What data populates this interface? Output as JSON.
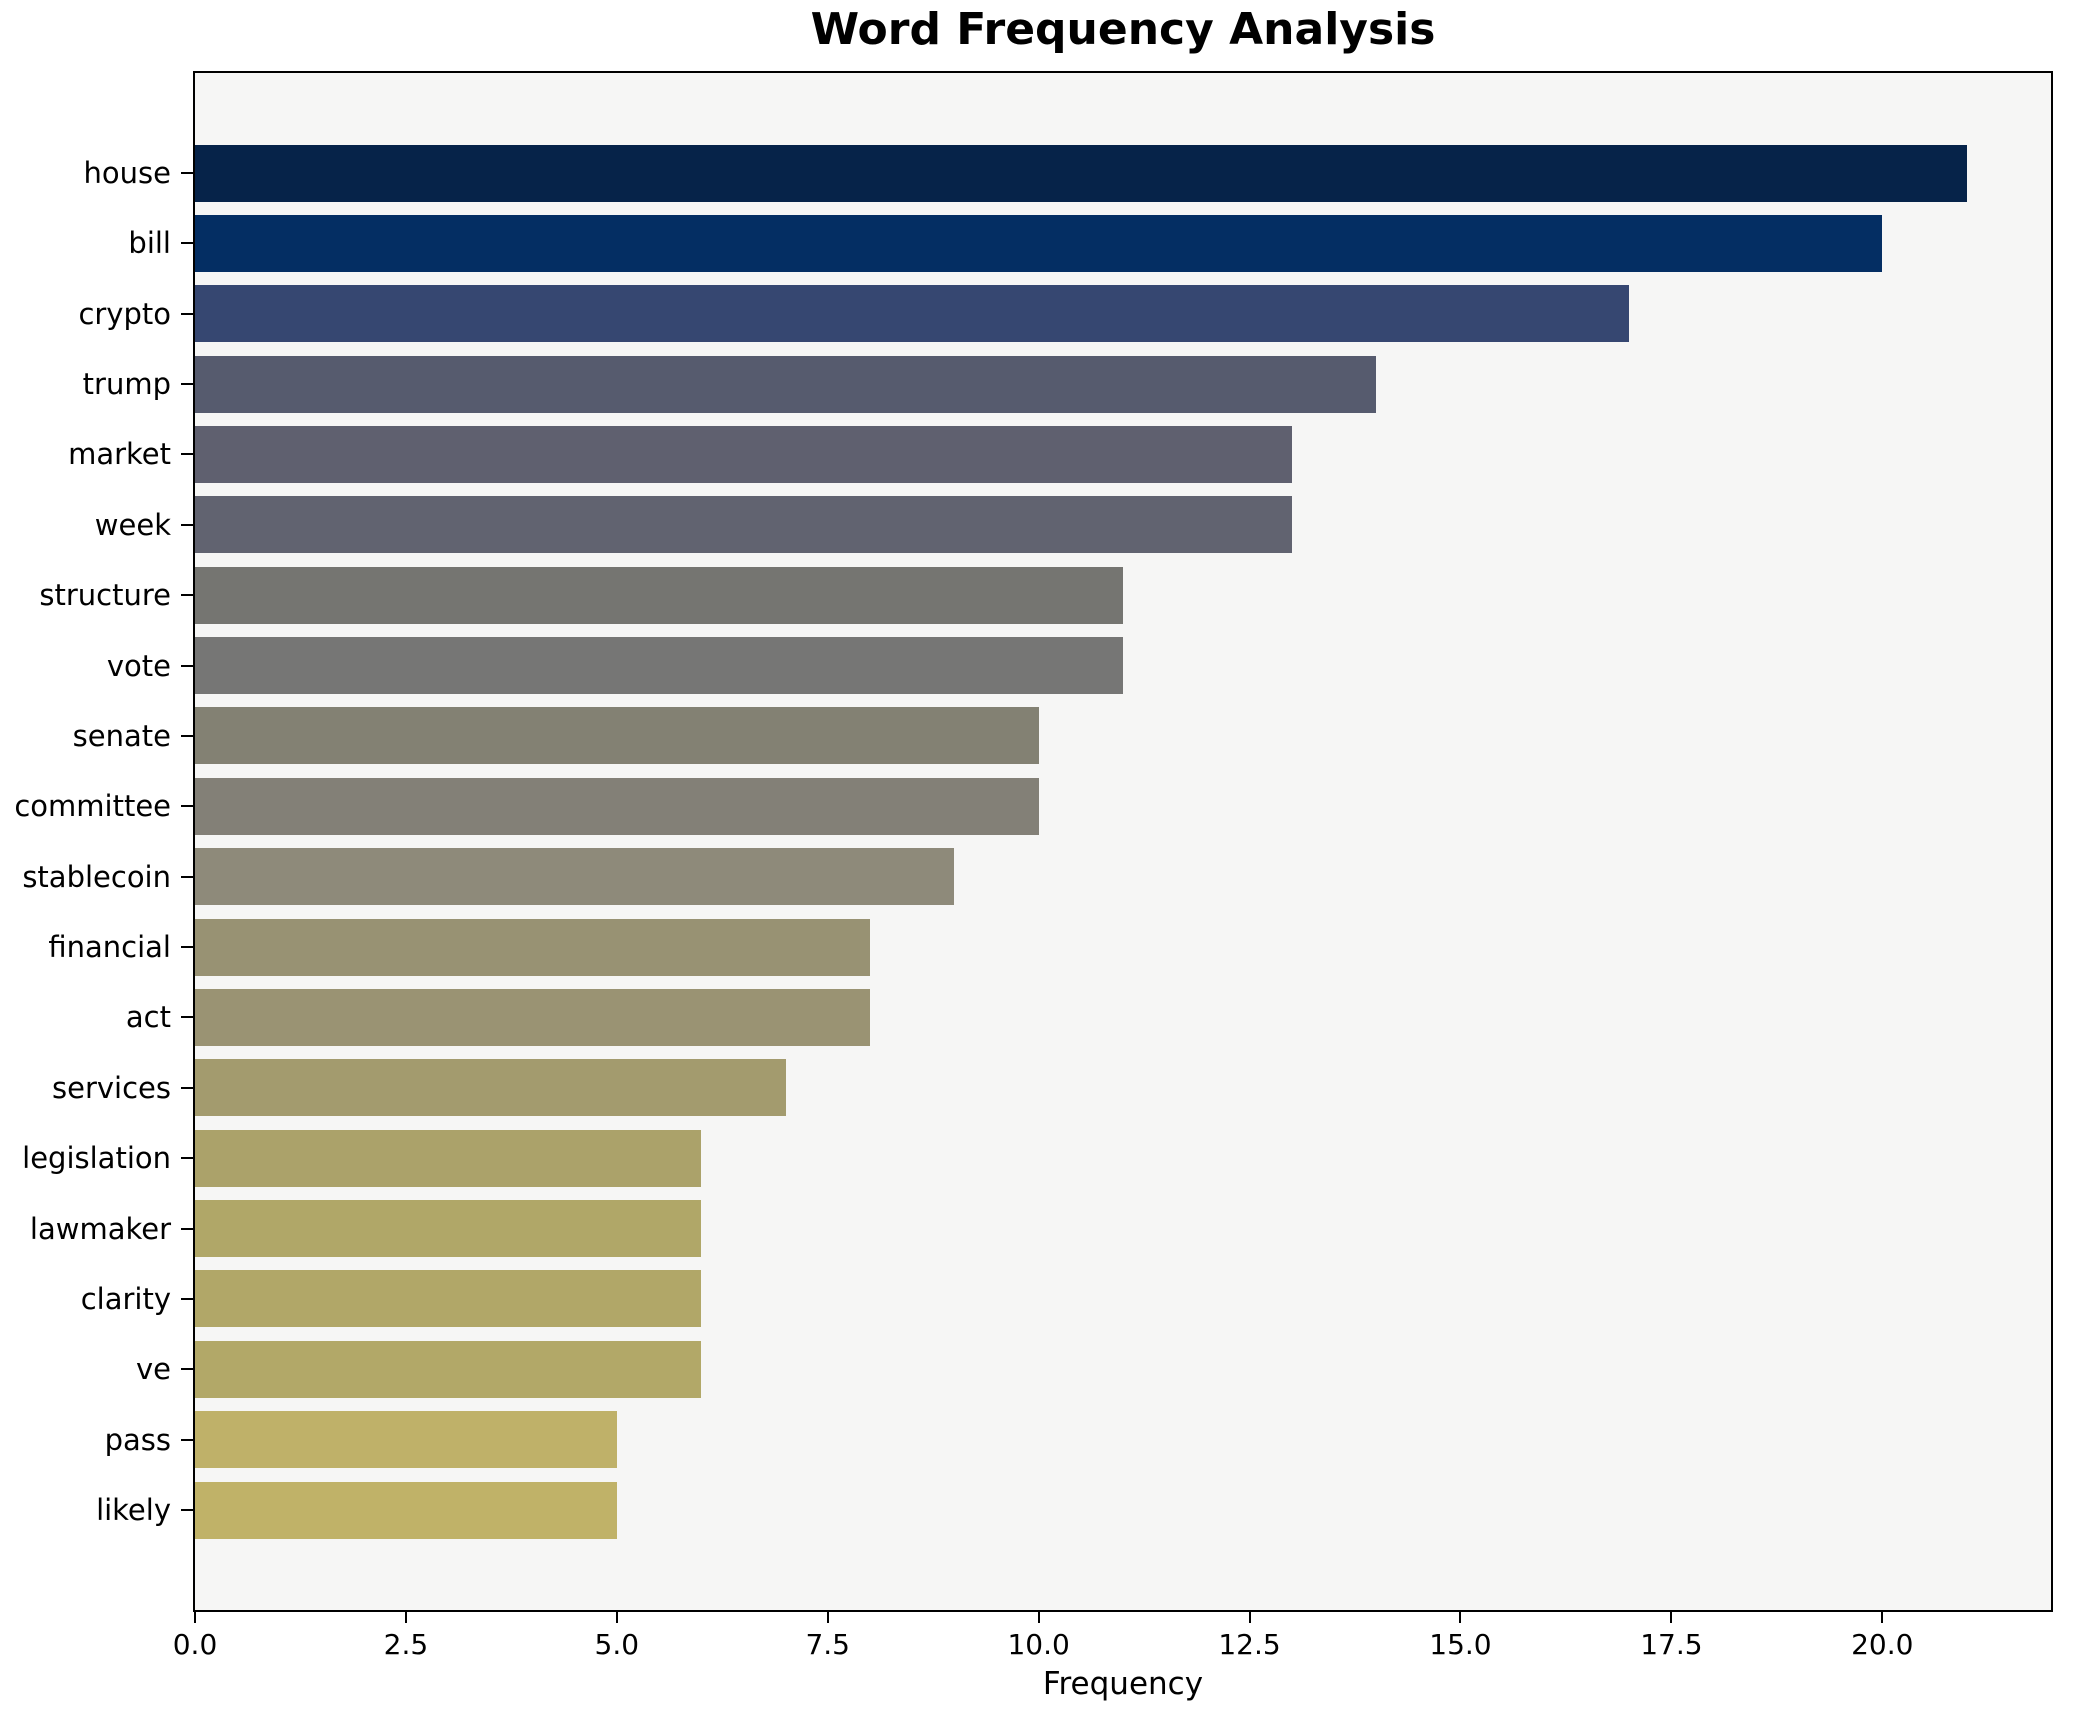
{
  "chart_data": {
    "type": "bar",
    "orientation": "horizontal",
    "title": "Word Frequency Analysis",
    "xlabel": "Frequency",
    "ylabel": "",
    "categories": [
      "house",
      "bill",
      "crypto",
      "trump",
      "market",
      "week",
      "structure",
      "vote",
      "senate",
      "committee",
      "stablecoin",
      "financial",
      "act",
      "services",
      "legislation",
      "lawmaker",
      "clarity",
      "ve",
      "pass",
      "likely"
    ],
    "values": [
      21,
      20,
      17,
      14,
      13,
      13,
      11,
      11,
      10,
      10,
      9,
      8,
      8,
      7,
      6,
      6,
      6,
      6,
      5,
      5
    ],
    "bar_colors": [
      "#062349",
      "#042e63",
      "#364771",
      "#565b6e",
      "#5f606f",
      "#616370",
      "#757571",
      "#767675",
      "#838173",
      "#838077",
      "#8e8a7a",
      "#989273",
      "#9a9373",
      "#a39b6e",
      "#aba26a",
      "#b0a768",
      "#b1a768",
      "#b2a868",
      "#bfb169",
      "#c0b268"
    ],
    "x_ticks": [
      0.0,
      2.5,
      5.0,
      7.5,
      10.0,
      12.5,
      15.0,
      17.5,
      20.0
    ],
    "x_tick_labels": [
      "0.0",
      "2.5",
      "5.0",
      "7.5",
      "10.0",
      "12.5",
      "15.0",
      "17.5",
      "20.0"
    ],
    "xlim": [
      0,
      22
    ],
    "grid": false,
    "legend": null,
    "colors": {
      "figure_bg": "#ffffff",
      "plot_bg": "#f6f6f5",
      "spine": "#000000",
      "text": "#000000"
    }
  }
}
